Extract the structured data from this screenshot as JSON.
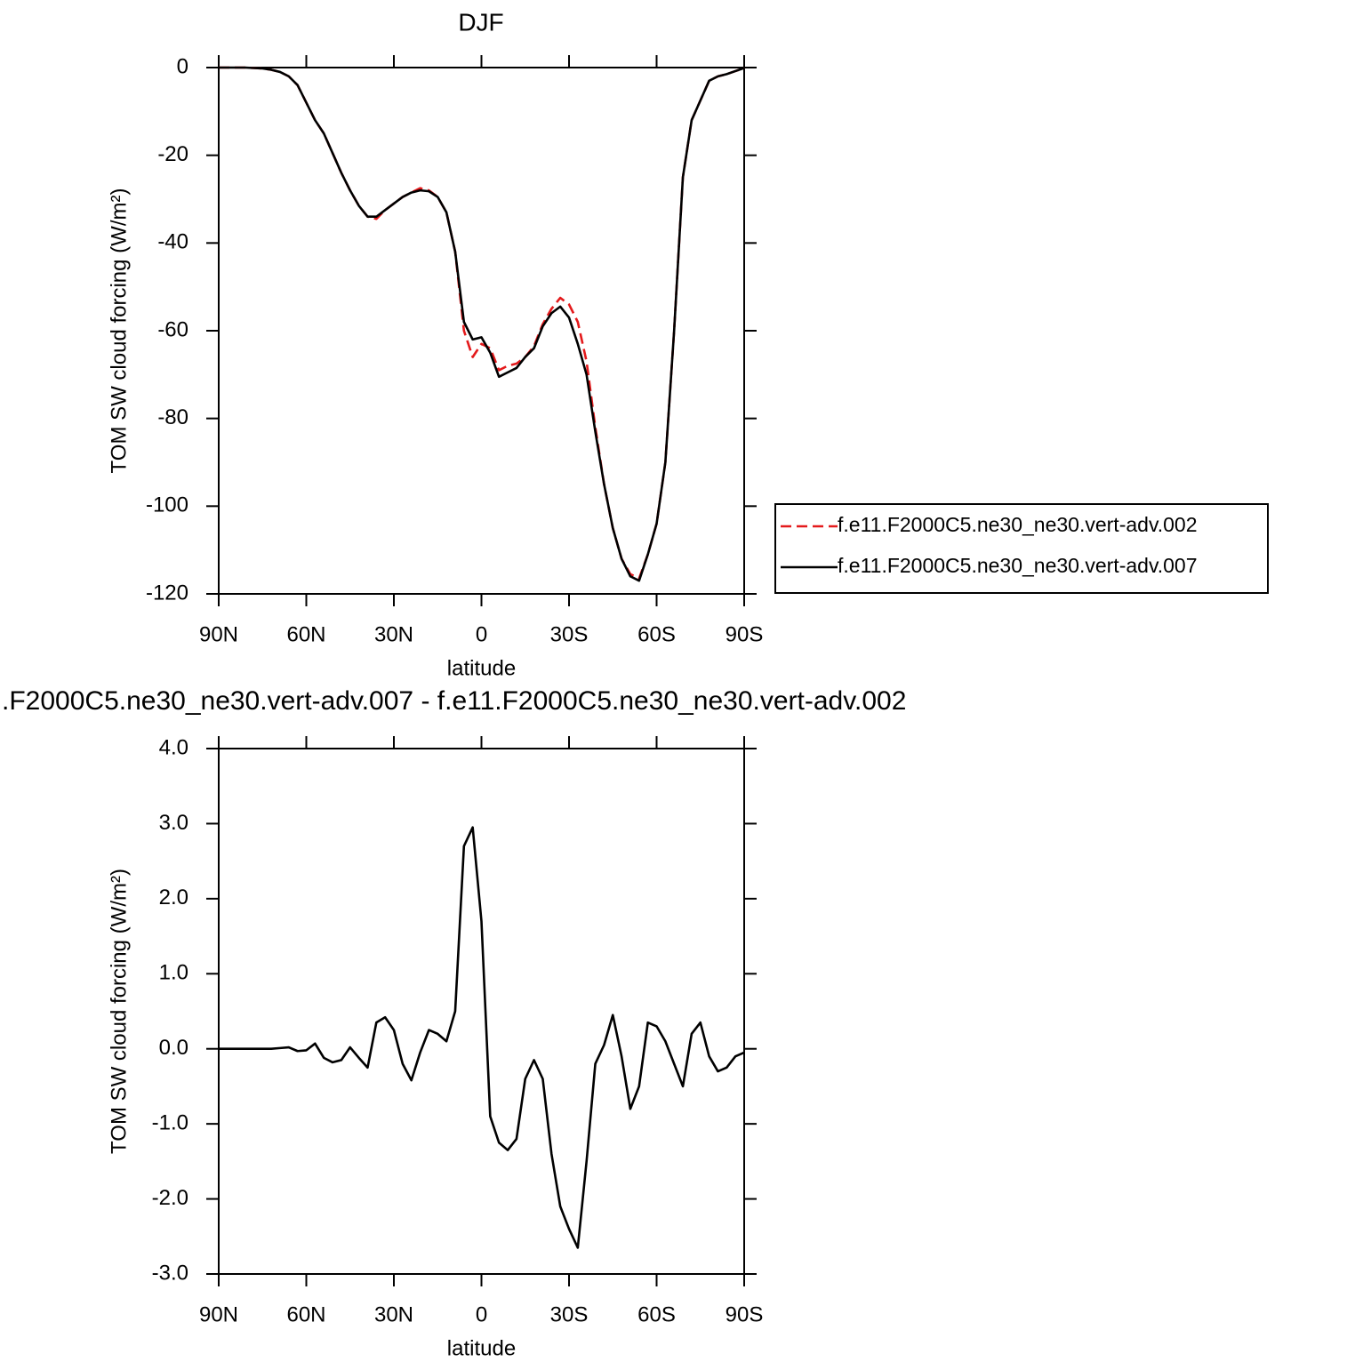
{
  "chart_data": [
    {
      "type": "line",
      "title": "DJF",
      "xlabel": "latitude",
      "ylabel": "TOM SW cloud forcing (W/m²)",
      "x": [
        90,
        87,
        84,
        81,
        78,
        75,
        72,
        69,
        66,
        63,
        60,
        57,
        54,
        51,
        48,
        45,
        42,
        39,
        36,
        33,
        30,
        27,
        24,
        21,
        18,
        15,
        12,
        9,
        6,
        3,
        0,
        -3,
        -6,
        -9,
        -12,
        -15,
        -18,
        -21,
        -24,
        -27,
        -30,
        -33,
        -36,
        -39,
        -42,
        -45,
        -48,
        -51,
        -54,
        -57,
        -60,
        -63,
        -66,
        -69,
        -72,
        -75,
        -78,
        -81,
        -84,
        -87,
        -90
      ],
      "series": [
        {
          "name": "f.e11.F2000C5.ne30_ne30.vert-adv.002",
          "color": "#e41a1c",
          "line_style": "dashed",
          "values": [
            0,
            0,
            0,
            0,
            -0.1,
            -0.2,
            -0.5,
            -1,
            -2,
            -4,
            -8,
            -12,
            -15,
            -19.5,
            -24,
            -28,
            -31.5,
            -34,
            -34.5,
            -32.5,
            -31,
            -29.5,
            -28.5,
            -27.5,
            -28,
            -29.5,
            -33,
            -42,
            -60,
            -66,
            -63,
            -64,
            -69,
            -68,
            -67.5,
            -66,
            -63.5,
            -58.5,
            -55,
            -52.5,
            -54,
            -58,
            -67,
            -82,
            -95,
            -105,
            -112,
            -115.5,
            -116.5,
            -111,
            -104,
            -90,
            -60,
            -25,
            -12,
            -7.5,
            -3,
            -2,
            -1.5,
            -0.8,
            -0.1
          ]
        },
        {
          "name": "f.e11.F2000C5.ne30_ne30.vert-adv.007",
          "color": "#000000",
          "line_style": "solid",
          "values": [
            0,
            0,
            0,
            0,
            -0.1,
            -0.2,
            -0.5,
            -1,
            -2,
            -4,
            -8,
            -12,
            -15,
            -19.5,
            -24,
            -28,
            -31.5,
            -34,
            -34,
            -32.5,
            -31,
            -29.5,
            -28.5,
            -28,
            -28.2,
            -29.5,
            -33,
            -42,
            -58,
            -62,
            -61.5,
            -65,
            -70.5,
            -69.5,
            -68.5,
            -66,
            -64,
            -59,
            -56,
            -54.5,
            -57,
            -63,
            -70,
            -83,
            -95,
            -105,
            -112,
            -116,
            -117,
            -111,
            -104,
            -90,
            -60,
            -25,
            -12,
            -7.5,
            -3,
            -2,
            -1.5,
            -0.8,
            -0.1
          ]
        }
      ],
      "xlim": [
        90,
        -90
      ],
      "xticks": [
        {
          "value": 90,
          "label": "90N"
        },
        {
          "value": 60,
          "label": "60N"
        },
        {
          "value": 30,
          "label": "30N"
        },
        0,
        {
          "value": -30,
          "label": "30S"
        },
        {
          "value": -60,
          "label": "60S"
        },
        {
          "value": -90,
          "label": "90S"
        }
      ],
      "ylim": [
        -120,
        0
      ],
      "yticks": [
        0,
        -20,
        -40,
        -60,
        -80,
        -100,
        -120
      ],
      "legend": "right"
    },
    {
      "type": "line",
      "title": ".F2000C5.ne30_ne30.vert-adv.007 - f.e11.F2000C5.ne30_ne30.vert-adv.002",
      "xlabel": "latitude",
      "ylabel": "TOM SW cloud forcing (W/m²)",
      "x": [
        90,
        87,
        84,
        81,
        78,
        75,
        72,
        69,
        66,
        63,
        60,
        57,
        54,
        51,
        48,
        45,
        42,
        39,
        36,
        33,
        30,
        27,
        24,
        21,
        18,
        15,
        12,
        9,
        6,
        3,
        0,
        -3,
        -6,
        -9,
        -12,
        -15,
        -18,
        -21,
        -24,
        -27,
        -30,
        -33,
        -36,
        -39,
        -42,
        -45,
        -48,
        -51,
        -54,
        -57,
        -60,
        -63,
        -66,
        -69,
        -72,
        -75,
        -78,
        -81,
        -84,
        -87,
        -90
      ],
      "series": [
        {
          "color": "#000000",
          "line_style": "solid",
          "values": [
            0,
            0,
            0,
            0,
            0,
            0,
            0,
            0.01,
            0.02,
            -0.03,
            -0.02,
            0.07,
            -0.12,
            -0.18,
            -0.15,
            0.02,
            -0.12,
            -0.25,
            0.35,
            0.42,
            0.25,
            -0.2,
            -0.42,
            -0.05,
            0.25,
            0.2,
            0.1,
            0.5,
            2.7,
            2.95,
            1.7,
            -0.9,
            -1.25,
            -1.35,
            -1.2,
            -0.4,
            -0.15,
            -0.4,
            -1.4,
            -2.1,
            -2.4,
            -2.65,
            -1.5,
            -0.2,
            0.05,
            0.45,
            -0.1,
            -0.8,
            -0.5,
            0.35,
            0.3,
            0.1,
            -0.2,
            -0.5,
            0.2,
            0.35,
            -0.1,
            -0.3,
            -0.25,
            -0.1,
            -0.05
          ]
        }
      ],
      "xlim": [
        90,
        -90
      ],
      "xticks": [
        {
          "value": 90,
          "label": "90N"
        },
        {
          "value": 60,
          "label": "60N"
        },
        {
          "value": 30,
          "label": "30N"
        },
        0,
        {
          "value": -30,
          "label": "30S"
        },
        {
          "value": -60,
          "label": "60S"
        },
        {
          "value": -90,
          "label": "90S"
        }
      ],
      "ylim": [
        -3,
        4
      ],
      "yticks": [
        {
          "value": 4,
          "label": "4.0"
        },
        {
          "value": 3,
          "label": "3.0"
        },
        {
          "value": 2,
          "label": "2.0"
        },
        {
          "value": 1,
          "label": "1.0"
        },
        {
          "value": 0,
          "label": "0.0"
        },
        {
          "value": -1,
          "label": "-1.0"
        },
        {
          "value": -2,
          "label": "-2.0"
        },
        {
          "value": -3,
          "label": "-3.0"
        }
      ]
    }
  ]
}
